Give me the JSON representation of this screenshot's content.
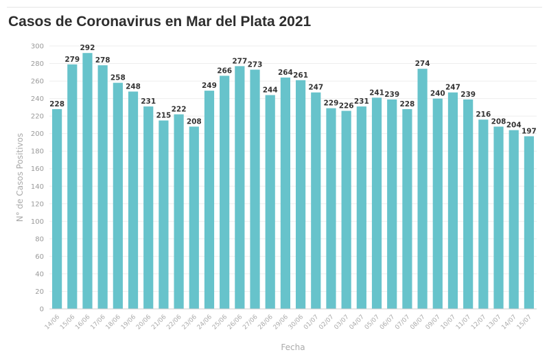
{
  "chart_data": {
    "type": "bar",
    "title": "Casos de Coronavirus en Mar del Plata 2021",
    "xlabel": "Fecha",
    "ylabel": "N° de Casos Positivos",
    "ylim": [
      0,
      300
    ],
    "ytick_step": 20,
    "grid": true,
    "bar_color": "#67c3cb",
    "categories": [
      "14/06",
      "15/06",
      "16/06",
      "17/06",
      "18/06",
      "19/06",
      "20/06",
      "21/06",
      "22/06",
      "23/06",
      "24/06",
      "25/06",
      "26/06",
      "27/06",
      "28/06",
      "29/06",
      "30/06",
      "01/07",
      "02/07",
      "03/07",
      "04/07",
      "05/07",
      "06/07",
      "07/07",
      "08/07",
      "09/07",
      "10/07",
      "11/07",
      "12/07",
      "13/07",
      "14/07",
      "15/07"
    ],
    "values": [
      228,
      279,
      292,
      278,
      258,
      248,
      231,
      215,
      222,
      208,
      249,
      266,
      277,
      273,
      244,
      264,
      261,
      247,
      229,
      226,
      231,
      241,
      239,
      228,
      274,
      240,
      247,
      239,
      216,
      208,
      204,
      197
    ]
  }
}
